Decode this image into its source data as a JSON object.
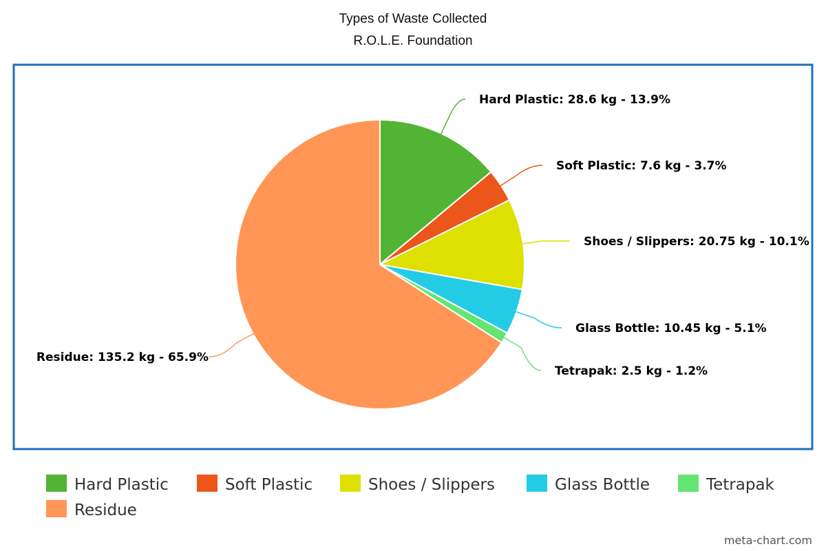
{
  "chart_data": {
    "type": "pie",
    "title": "Types of Waste Collected",
    "subtitle": "R.O.L.E. Foundation",
    "unit": "kg",
    "slices": [
      {
        "name": "Hard Plastic",
        "value": 28.6,
        "percent": "13.9%",
        "color": "#52b434",
        "label": "Hard Plastic: 28.6 kg - 13.9%"
      },
      {
        "name": "Soft Plastic",
        "value": 7.6,
        "percent": "3.7%",
        "color": "#ec561b",
        "label": "Soft Plastic: 7.6 kg - 3.7%"
      },
      {
        "name": "Shoes / Slippers",
        "value": 20.75,
        "percent": "10.1%",
        "color": "#dde000",
        "label": "Shoes / Slippers: 20.75 kg - 10.1%"
      },
      {
        "name": "Glass Bottle",
        "value": 10.45,
        "percent": "5.1%",
        "color": "#24cbe5",
        "label": "Glass Bottle: 10.45 kg - 5.1%"
      },
      {
        "name": "Tetrapak",
        "value": 2.5,
        "percent": "1.2%",
        "color": "#64e572",
        "label": "Tetrapak: 2.5 kg - 1.2%"
      },
      {
        "name": "Residue",
        "value": 135.2,
        "percent": "65.9%",
        "color": "#ff9655",
        "label": "Residue: 135.2 kg - 65.9%"
      }
    ],
    "legend_placement": "bottom",
    "frame_color": "#1e6fc0"
  },
  "watermark": "meta-chart.com"
}
